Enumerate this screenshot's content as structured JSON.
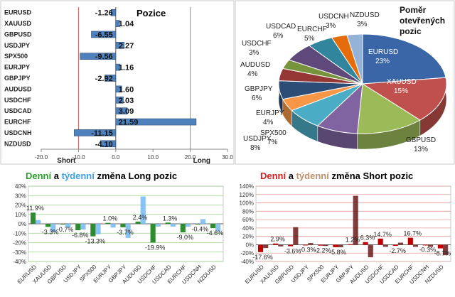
{
  "chart_data": [
    {
      "type": "bar",
      "orientation": "horizontal",
      "title": "Pozice",
      "categories": [
        "EURUSD",
        "XAUUSD",
        "GBPUSD",
        "USDJPY",
        "SPX500",
        "EURJPY",
        "GBPJPY",
        "AUDUSD",
        "USDCHF",
        "USDCAD",
        "EURCHF",
        "USDCNH",
        "NZDUSD"
      ],
      "values": [
        -1.26,
        1.04,
        -6.55,
        2.27,
        -9.56,
        1.16,
        -2.92,
        1.6,
        2.03,
        3.09,
        21.59,
        -11.15,
        -4.1
      ],
      "value_labels": [
        "-1.26",
        "1.04",
        "-6.55",
        "2.27",
        "-9.56",
        "1.16",
        "-2.92",
        "1.60",
        "2.03",
        "3.09",
        "21.59",
        "-11.15",
        "-4.10"
      ],
      "xlim": [
        -20,
        30
      ],
      "xticks": [
        "-20.0",
        "-10.0",
        "0.0",
        "10.0",
        "20.0",
        "30.0"
      ],
      "short_label": "Short",
      "long_label": "Long",
      "bar_color": "#4f81bd"
    },
    {
      "type": "pie",
      "title_lines": [
        "Poměr",
        "otevřených",
        "pozic"
      ],
      "slices": [
        {
          "name": "EURUSD",
          "value": 23,
          "label": "23%",
          "color": "#3a66a8"
        },
        {
          "name": "XAUUSD",
          "value": 15,
          "label": "15%",
          "color": "#c0504d"
        },
        {
          "name": "GBPUSD",
          "value": 13,
          "label": "13%",
          "color": "#9bbb59"
        },
        {
          "name": "USDJPY",
          "value": 8,
          "label": "8%",
          "color": "#8064a2"
        },
        {
          "name": "SPX500",
          "value": 7,
          "label": "7%",
          "color": "#4bacc6"
        },
        {
          "name": "EURJPY",
          "value": 4,
          "label": "4%",
          "color": "#f79646"
        },
        {
          "name": "GBPJPY",
          "value": 6,
          "label": "6%",
          "color": "#2c4d75"
        },
        {
          "name": "AUDUSD",
          "value": 4,
          "label": "4%",
          "color": "#953735"
        },
        {
          "name": "USDCHF",
          "value": 3,
          "label": "3%",
          "color": "#77933c"
        },
        {
          "name": "USDCAD",
          "value": 6,
          "label": "6%",
          "color": "#5f497a"
        },
        {
          "name": "EURCHF",
          "value": 5,
          "label": "5%",
          "color": "#31859c"
        },
        {
          "name": "USDCNH",
          "value": 3,
          "label": "3%",
          "color": "#e46c0a"
        },
        {
          "name": "NZDUSD",
          "value": 3,
          "label": "3%",
          "color": "#95b3d7"
        }
      ]
    },
    {
      "type": "bar",
      "title_parts": [
        {
          "text": "Denní",
          "color": "#2e9e2e"
        },
        {
          "text": " a ",
          "color": "#000000"
        },
        {
          "text": "týdenní",
          "color": "#3ca0e6"
        },
        {
          "text": " změna Long pozic",
          "color": "#000000"
        }
      ],
      "categories": [
        "EURUSD",
        "XAUUSD",
        "GBPUSD",
        "USDJPY",
        "SPX500",
        "EURJPY",
        "GBPJPY",
        "AUDUSD",
        "USDCHF",
        "USDCAD",
        "EURCHF",
        "USDCNH",
        "NZDUSD"
      ],
      "series": [
        {
          "name": "Denní",
          "color": "#2e8b2e",
          "values": [
            11.9,
            -3.3,
            -0.7,
            -6.8,
            -13.3,
            1.0,
            -3.7,
            2.4,
            -19.9,
            1.3,
            -9.0,
            -0.4,
            -4.6
          ]
        },
        {
          "name": "týdenní",
          "color": "#74b9f0",
          "values": [
            4,
            -9,
            -4,
            -6,
            -11,
            -4,
            -15,
            29,
            -3,
            -3,
            -3,
            5,
            -8
          ]
        }
      ],
      "data_labels": [
        "11.9%",
        "-3.3%",
        "-0.7%",
        "-6.8%",
        "-13.3%",
        "1.0%",
        "-3.7%",
        "2.4%",
        "-19.9%",
        "1.3%",
        "-9.0%",
        "-0.4%",
        "-4.6%"
      ],
      "ylim": [
        -40,
        40
      ],
      "yticks": [
        "40%",
        "30%",
        "20%",
        "10%",
        "0%",
        "-10%",
        "-20%",
        "-30%",
        "-40%"
      ]
    },
    {
      "type": "bar",
      "title_parts": [
        {
          "text": "Denní",
          "color": "#d42020"
        },
        {
          "text": " a ",
          "color": "#000000"
        },
        {
          "text": "týdenní",
          "color": "#c0906a"
        },
        {
          "text": " změna Short pozic",
          "color": "#000000"
        }
      ],
      "categories": [
        "EURUSD",
        "XAUUSD",
        "GBPUSD",
        "USDJPY",
        "SPX500",
        "EURJPY",
        "GBPJPY",
        "AUDUSD",
        "USDCHF",
        "USDCAD",
        "EURCHF",
        "USDCNH",
        "NZDUSD"
      ],
      "series": [
        {
          "name": "Denní",
          "color": "#c00000",
          "values": [
            -17.6,
            2.9,
            -3.6,
            -0.3,
            -2.2,
            -5.8,
            1.2,
            6.3,
            14.7,
            -2.7,
            16.7,
            -0.3,
            -8.7
          ]
        },
        {
          "name": "týdenní",
          "color": "#6b1a1a",
          "values": [
            -8,
            -4,
            42,
            4,
            -3,
            -6,
            117,
            -30,
            -5,
            5,
            -5,
            -5,
            -25
          ]
        }
      ],
      "data_labels": [
        "-17.6%",
        "2.9%",
        "-3.6%",
        "-0.3%",
        "-2.2%",
        "-5.8%",
        "1.2%",
        "6.3%",
        "14.7%",
        "-2.7%",
        "16.7%",
        "-0.3%",
        "-8.7%"
      ],
      "ylim": [
        -40,
        140
      ],
      "yticks": [
        "140%",
        "120%",
        "100%",
        "80%",
        "60%",
        "40%",
        "20%",
        "0%",
        "-20%",
        "-40%"
      ]
    }
  ]
}
